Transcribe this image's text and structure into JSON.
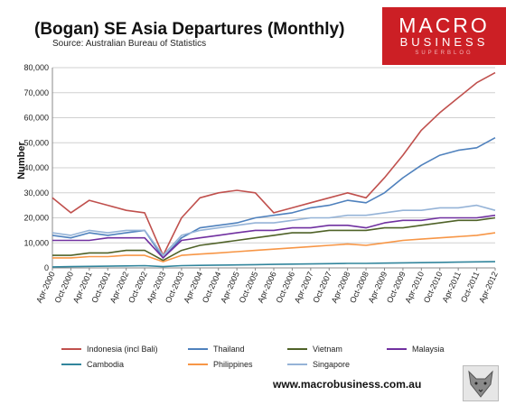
{
  "header": {
    "title": "(Bogan) SE Asia Departures (Monthly)",
    "subtitle": "Source: Australian Bureau of Statistics"
  },
  "logo": {
    "line1": "MACRO",
    "line2": "BUSINESS",
    "line3": "SUPERBLOG"
  },
  "footer": {
    "url": "www.macrobusiness.com.au"
  },
  "colors": {
    "Indonesia (incl Bali)": "#c0504d",
    "Thailand": "#4f81bd",
    "Vietnam": "#4f6228",
    "Malaysia": "#7030a0",
    "Cambodia": "#31859c",
    "Philippines": "#f79646",
    "Singapore": "#95b3d7"
  },
  "chart_data": {
    "type": "line",
    "title": "(Bogan) SE Asia Departures (Monthly)",
    "ylabel": "Number",
    "xlabel": "",
    "ylim": [
      0,
      80000
    ],
    "yticks": [
      "0",
      "10,000",
      "20,000",
      "30,000",
      "40,000",
      "50,000",
      "60,000",
      "70,000",
      "80,000"
    ],
    "grid": true,
    "legend": "bottom",
    "x": [
      "Apr-2000",
      "Oct-2000",
      "Apr-2001",
      "Oct-2001",
      "Apr-2002",
      "Oct-2002",
      "Apr-2003",
      "Oct-2003",
      "Apr-2004",
      "Oct-2004",
      "Apr-2005",
      "Oct-2005",
      "Apr-2006",
      "Oct-2006",
      "Apr-2007",
      "Oct-2007",
      "Apr-2008",
      "Oct-2008",
      "Apr-2009",
      "Oct-2009",
      "Apr-2010",
      "Oct-2010",
      "Apr-2011",
      "Oct-2011",
      "Apr-2012"
    ],
    "series": [
      {
        "name": "Indonesia (incl Bali)",
        "values": [
          28000,
          22000,
          27000,
          25000,
          23000,
          22000,
          5000,
          20000,
          28000,
          30000,
          31000,
          30000,
          22000,
          24000,
          26000,
          28000,
          30000,
          28000,
          36000,
          45000,
          55000,
          62000,
          68000,
          74000,
          78000
        ]
      },
      {
        "name": "Thailand",
        "values": [
          13000,
          12000,
          14000,
          13000,
          14000,
          15000,
          4000,
          12000,
          16000,
          17000,
          18000,
          20000,
          21000,
          22000,
          24000,
          25000,
          27000,
          26000,
          30000,
          36000,
          41000,
          45000,
          47000,
          48000,
          52000
        ]
      },
      {
        "name": "Vietnam",
        "values": [
          5000,
          5000,
          6000,
          6000,
          7000,
          7000,
          3000,
          7000,
          9000,
          10000,
          11000,
          12000,
          13000,
          14000,
          14000,
          15000,
          15000,
          15000,
          16000,
          16000,
          17000,
          18000,
          19000,
          19000,
          20000
        ]
      },
      {
        "name": "Malaysia",
        "values": [
          11000,
          11000,
          11000,
          12000,
          12000,
          12000,
          4000,
          11000,
          12000,
          13000,
          14000,
          15000,
          15000,
          16000,
          16000,
          17000,
          17000,
          16000,
          18000,
          19000,
          19000,
          20000,
          20000,
          20000,
          21000
        ]
      },
      {
        "name": "Cambodia",
        "values": [
          400,
          500,
          600,
          700,
          800,
          900,
          500,
          900,
          1000,
          1100,
          1200,
          1300,
          1400,
          1500,
          1600,
          1700,
          1800,
          1800,
          1900,
          2000,
          2100,
          2200,
          2300,
          2400,
          2500
        ]
      },
      {
        "name": "Philippines",
        "values": [
          4000,
          4000,
          4500,
          4500,
          5000,
          5000,
          2500,
          5000,
          5500,
          6000,
          6500,
          7000,
          7500,
          8000,
          8500,
          9000,
          9500,
          9000,
          10000,
          11000,
          11500,
          12000,
          12500,
          13000,
          14000
        ]
      },
      {
        "name": "Singapore",
        "values": [
          14000,
          13000,
          15000,
          14000,
          15000,
          15000,
          5000,
          13000,
          15000,
          16000,
          17000,
          18000,
          18000,
          19000,
          20000,
          20000,
          21000,
          21000,
          22000,
          23000,
          23000,
          24000,
          24000,
          25000,
          23000
        ]
      }
    ]
  }
}
